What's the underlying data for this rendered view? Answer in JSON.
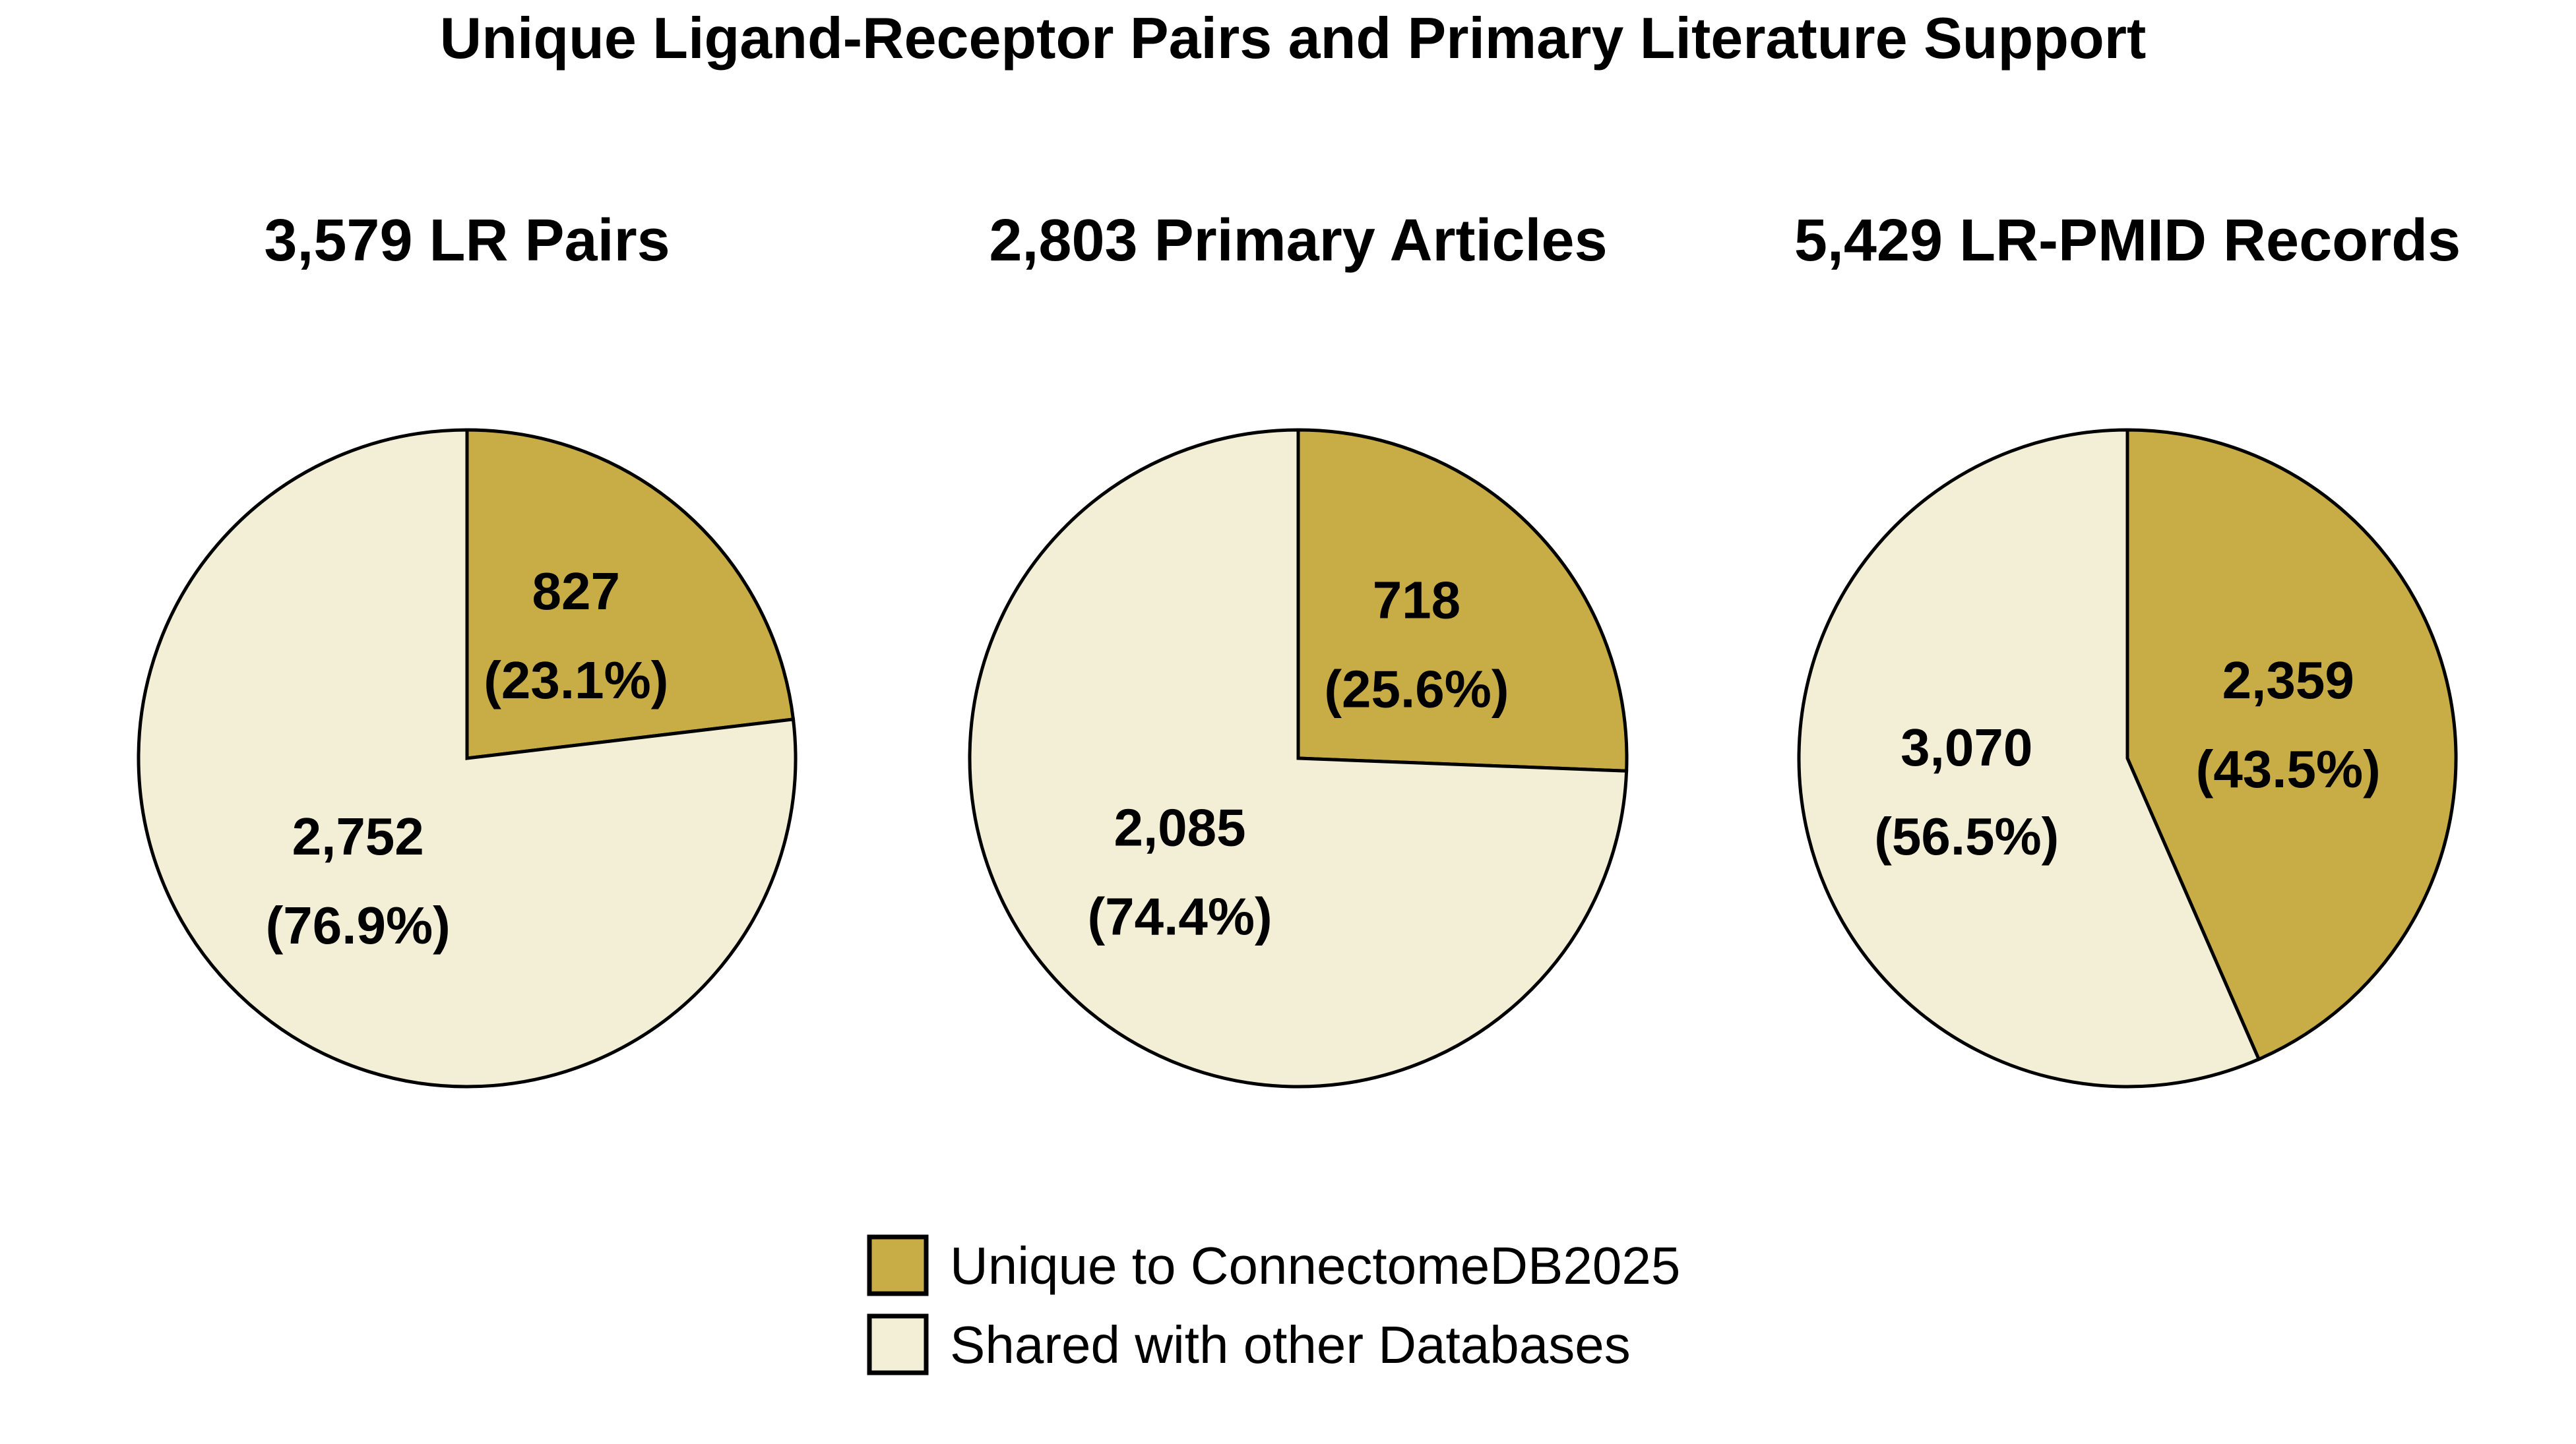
{
  "chart_data": [
    {
      "type": "pie",
      "title": "3,579 LR Pairs",
      "categories": [
        "Unique to ConnectomeDB2025",
        "Shared with other Databases"
      ],
      "values": [
        827,
        2752
      ],
      "labels": [
        "827",
        "2,752"
      ],
      "percent_labels": [
        "(23.1%)",
        "(76.9%)"
      ]
    },
    {
      "type": "pie",
      "title": "2,803 Primary Articles",
      "categories": [
        "Unique to ConnectomeDB2025",
        "Shared with other Databases"
      ],
      "values": [
        718,
        2085
      ],
      "labels": [
        "718",
        "2,085"
      ],
      "percent_labels": [
        "(25.6%)",
        "(74.4%)"
      ]
    },
    {
      "type": "pie",
      "title": "5,429 LR-PMID Records",
      "categories": [
        "Unique to ConnectomeDB2025",
        "Shared with other Databases"
      ],
      "values": [
        2359,
        3070
      ],
      "labels": [
        "2,359",
        "3,070"
      ],
      "percent_labels": [
        "(43.5%)",
        "(56.5%)"
      ]
    }
  ],
  "title": "Unique Ligand-Receptor Pairs and Primary Literature Support",
  "legend": {
    "placement": "bottom-center",
    "items": [
      {
        "label": "Unique to ConnectomeDB2025",
        "color": "#C8AC45"
      },
      {
        "label": "Shared with other Databases",
        "color": "#F3EED6"
      }
    ]
  },
  "colors": {
    "unique": "#C8AC45",
    "shared": "#F3EED6",
    "edge": "#000000"
  }
}
